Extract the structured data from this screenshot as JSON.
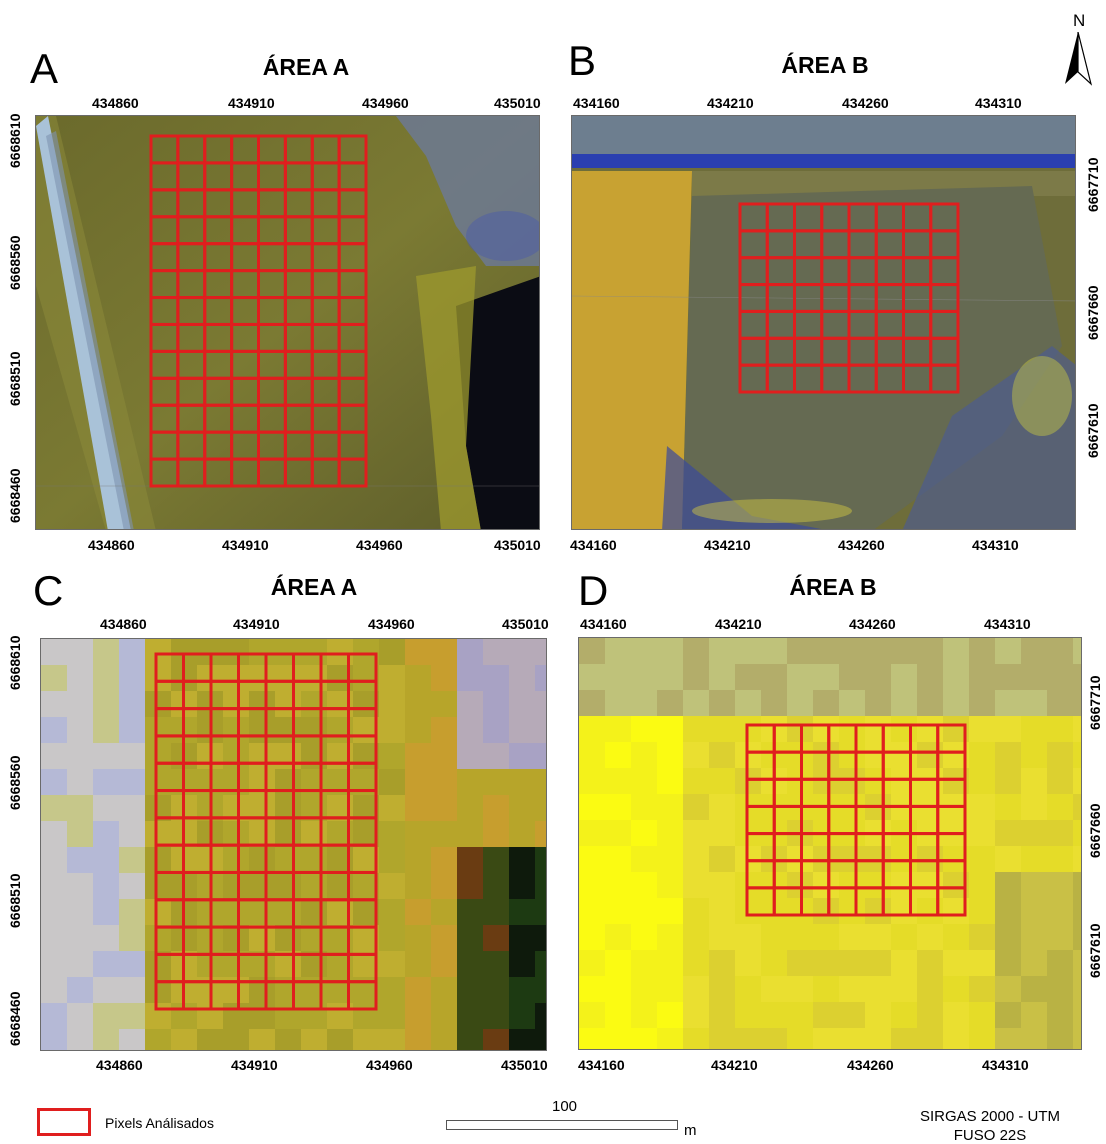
{
  "panels": {
    "A": {
      "letter": "A",
      "title": "ÁREA A",
      "x_ticks": [
        "434860",
        "434910",
        "434960",
        "435010"
      ],
      "y_ticks": [
        "6668610",
        "6668560",
        "6668510",
        "6668460"
      ]
    },
    "B": {
      "letter": "B",
      "title": "ÁREA B",
      "x_ticks": [
        "434160",
        "434210",
        "434260",
        "434310"
      ],
      "y_ticks": [
        "6667710",
        "6667660",
        "6667610"
      ]
    },
    "C": {
      "letter": "C",
      "title": "ÁREA A",
      "x_ticks": [
        "434860",
        "434910",
        "434960",
        "435010"
      ],
      "y_ticks": [
        "6668610",
        "6668560",
        "6668510",
        "6668460"
      ]
    },
    "D": {
      "letter": "D",
      "title": "ÁREA B",
      "x_ticks": [
        "434160",
        "434210",
        "434260",
        "434310"
      ],
      "y_ticks": [
        "6667710",
        "6667660",
        "6667610"
      ]
    }
  },
  "legend": {
    "label": "Pixels Análisados",
    "color": "#e01e1e"
  },
  "scale": {
    "value": "100",
    "unit": "m"
  },
  "crs": {
    "line1": "SIRGAS 2000 - UTM",
    "line2": "FUSO 22S"
  },
  "north": {
    "label": "N",
    "icon": "north-arrow-icon"
  },
  "grids": {
    "A": {
      "cols": 8,
      "rows": 13
    },
    "B": {
      "cols": 8,
      "rows": 7
    },
    "C": {
      "cols": 8,
      "rows": 13
    },
    "D": {
      "cols": 8,
      "rows": 7
    }
  }
}
